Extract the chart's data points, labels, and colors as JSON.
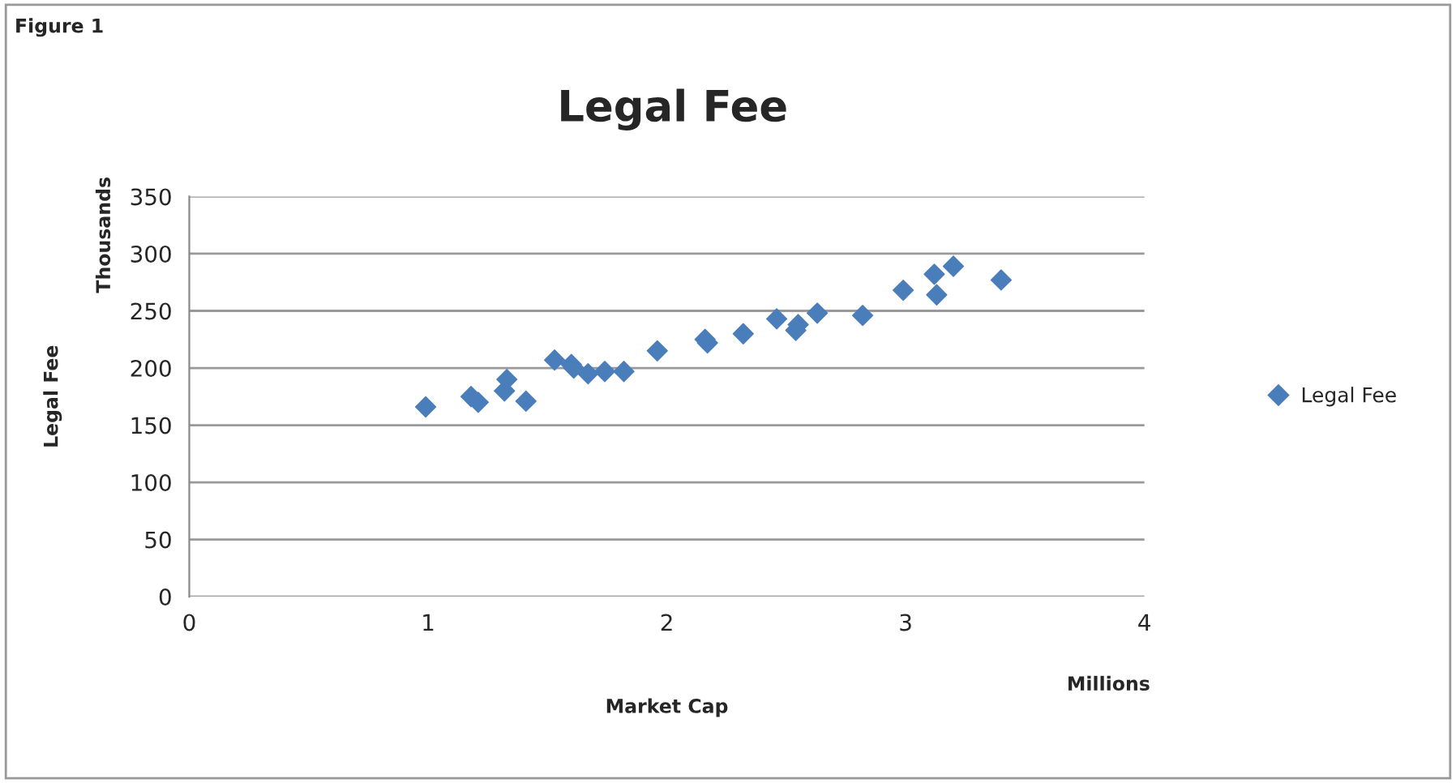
{
  "chart_data": {
    "type": "scatter",
    "title": "Legal Fee",
    "xlabel": "Market Cap",
    "ylabel": "Legal Fee",
    "annotations": [
      "Figure 1",
      "Thousands",
      "Millions"
    ],
    "series": [
      {
        "name": "Legal Fee",
        "color": "#4a7ebb",
        "x": [
          0.99,
          1.18,
          1.21,
          1.32,
          1.33,
          1.41,
          1.53,
          1.6,
          1.61,
          1.67,
          1.74,
          1.82,
          1.96,
          2.16,
          2.17,
          2.32,
          2.46,
          2.54,
          2.55,
          2.63,
          2.82,
          2.99,
          3.12,
          3.13,
          3.2,
          3.4
        ],
        "values": [
          166,
          175,
          170,
          180,
          190,
          171,
          207,
          203,
          200,
          195,
          197,
          197,
          215,
          225,
          222,
          230,
          243,
          233,
          238,
          248,
          246,
          268,
          282,
          264,
          289,
          277
        ]
      }
    ],
    "xlim": [
      0,
      4
    ],
    "xticks": [
      0,
      1,
      2,
      3,
      4
    ],
    "ylim": [
      0,
      350
    ],
    "yticks": [
      0,
      50,
      100,
      150,
      200,
      250,
      300,
      350
    ],
    "grid": "y",
    "legend": "right",
    "marker": "diamond"
  }
}
